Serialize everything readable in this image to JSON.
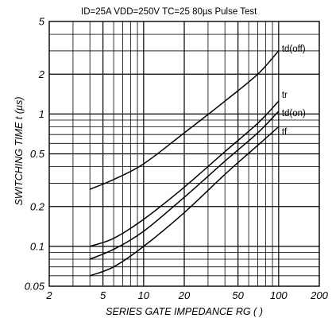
{
  "chart_data": {
    "type": "line",
    "title": "",
    "conditions": "ID=25A   VDD=250V   TC=25     80µs Pulse Test",
    "xlabel": "SERIES GATE IMPEDANCE  RG (   )",
    "ylabel": "SWITCHING TIME  t (µs)",
    "xscale": "log",
    "yscale": "log",
    "xlim": [
      2,
      200
    ],
    "ylim": [
      0.05,
      5
    ],
    "grid": true,
    "x_ticks": [
      {
        "value": 2,
        "label": "2"
      },
      {
        "value": 5,
        "label": "5"
      },
      {
        "value": 10,
        "label": "10"
      },
      {
        "value": 20,
        "label": "20"
      },
      {
        "value": 50,
        "label": "50"
      },
      {
        "value": 100,
        "label": "100"
      },
      {
        "value": 200,
        "label": "200"
      }
    ],
    "y_ticks": [
      {
        "value": 0.05,
        "label": "0.05"
      },
      {
        "value": 0.1,
        "label": "0.1"
      },
      {
        "value": 0.2,
        "label": "0.2"
      },
      {
        "value": 0.5,
        "label": "0.5"
      },
      {
        "value": 1,
        "label": "1"
      },
      {
        "value": 2,
        "label": "2"
      },
      {
        "value": 5,
        "label": "5"
      }
    ],
    "series": [
      {
        "name": "td(off)",
        "points": [
          [
            4,
            0.27
          ],
          [
            6,
            0.32
          ],
          [
            10,
            0.42
          ],
          [
            20,
            0.72
          ],
          [
            40,
            1.25
          ],
          [
            70,
            2.0
          ],
          [
            100,
            3.0
          ]
        ]
      },
      {
        "name": "tr",
        "points": [
          [
            4,
            0.1
          ],
          [
            6,
            0.115
          ],
          [
            10,
            0.16
          ],
          [
            20,
            0.28
          ],
          [
            40,
            0.52
          ],
          [
            70,
            0.85
          ],
          [
            100,
            1.25
          ]
        ]
      },
      {
        "name": "td(on)",
        "points": [
          [
            4,
            0.08
          ],
          [
            6,
            0.095
          ],
          [
            10,
            0.13
          ],
          [
            20,
            0.235
          ],
          [
            40,
            0.44
          ],
          [
            70,
            0.72
          ],
          [
            100,
            1.05
          ]
        ]
      },
      {
        "name": "tf",
        "points": [
          [
            4,
            0.06
          ],
          [
            6,
            0.07
          ],
          [
            10,
            0.1
          ],
          [
            20,
            0.18
          ],
          [
            40,
            0.35
          ],
          [
            70,
            0.58
          ],
          [
            100,
            0.8
          ]
        ]
      }
    ]
  }
}
